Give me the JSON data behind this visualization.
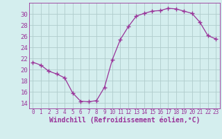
{
  "x": [
    0,
    1,
    2,
    3,
    4,
    5,
    6,
    7,
    8,
    9,
    10,
    11,
    12,
    13,
    14,
    15,
    16,
    17,
    18,
    19,
    20,
    21,
    22,
    23
  ],
  "y": [
    21.3,
    20.8,
    19.7,
    19.2,
    18.5,
    15.8,
    14.3,
    14.2,
    14.4,
    16.8,
    21.8,
    25.4,
    27.7,
    29.6,
    30.1,
    30.5,
    30.6,
    31.0,
    30.9,
    30.5,
    30.1,
    28.5,
    26.1,
    25.5
  ],
  "line_color": "#993399",
  "marker": "+",
  "marker_size": 4,
  "bg_color": "#d4eeee",
  "grid_color": "#b0cccc",
  "axis_color": "#993399",
  "xlabel": "Windchill (Refroidissement éolien,°C)",
  "ylim": [
    13,
    32
  ],
  "xlim": [
    -0.5,
    23.5
  ],
  "yticks": [
    14,
    16,
    18,
    20,
    22,
    24,
    26,
    28,
    30
  ],
  "xticks": [
    0,
    1,
    2,
    3,
    4,
    5,
    6,
    7,
    8,
    9,
    10,
    11,
    12,
    13,
    14,
    15,
    16,
    17,
    18,
    19,
    20,
    21,
    22,
    23
  ],
  "tick_color": "#993399",
  "xlabel_fontsize": 7,
  "ytick_fontsize": 6.5,
  "xtick_fontsize": 5.5
}
